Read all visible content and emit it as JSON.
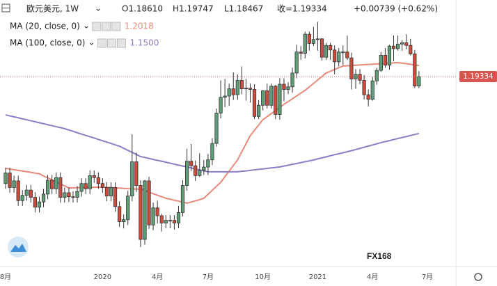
{
  "chart_data": {
    "type": "candlestick",
    "symbol": "欧元美元, 1W",
    "ohlc_text": [
      "O1.18610",
      "H1.19747",
      "L1.18467",
      "收=1.19334",
      "+0.00739 (+0.62%)"
    ],
    "price_label": "1.19334",
    "watermark": "FX168",
    "up_color": "#5f9f78",
    "down_color": "#cf4b3b",
    "price_line_color": "#d9534f",
    "ylim": [
      1.0505,
      1.2515
    ],
    "categories": [
      "8月",
      null,
      null,
      null,
      null,
      null,
      null,
      null,
      null,
      null,
      null,
      null,
      null,
      null,
      null,
      null,
      null,
      null,
      null,
      null,
      null,
      null,
      null,
      "2020",
      null,
      null,
      null,
      null,
      null,
      null,
      null,
      null,
      null,
      null,
      null,
      null,
      "4月",
      null,
      null,
      null,
      null,
      null,
      null,
      null,
      null,
      null,
      null,
      null,
      "7月",
      null,
      null,
      null,
      null,
      null,
      null,
      null,
      null,
      null,
      null,
      null,
      null,
      "10月",
      null,
      null,
      null,
      null,
      null,
      null,
      null,
      null,
      null,
      null,
      null,
      null,
      "2021",
      null,
      null,
      null,
      null,
      null,
      null,
      null,
      null,
      null,
      null,
      null,
      null,
      "4月",
      null,
      null,
      null,
      null,
      null,
      null,
      null,
      null,
      null,
      null,
      null,
      null,
      "7月"
    ],
    "open": [
      1.112,
      1.12,
      1.109,
      1.114,
      1.099,
      1.103,
      1.107,
      1.1015,
      1.094,
      1.098,
      1.104,
      1.1145,
      1.108,
      1.1165,
      1.1015,
      1.105,
      1.102,
      1.1015,
      1.106,
      1.112,
      1.108,
      1.118,
      1.1165,
      1.112,
      1.109,
      1.1025,
      1.109,
      1.0945,
      1.083,
      1.0845,
      1.1025,
      1.1285,
      1.1105,
      1.0695,
      1.114,
      1.0805,
      1.0935,
      1.0875,
      1.082,
      1.084,
      1.084,
      1.082,
      1.09,
      1.1105,
      1.129,
      1.1255,
      1.118,
      1.122,
      1.1245,
      1.13,
      1.1425,
      1.1655,
      1.1775,
      1.1785,
      1.184,
      1.1795,
      1.1905,
      1.184,
      1.1845,
      1.1835,
      1.163,
      1.1715,
      1.1825,
      1.1715,
      1.186,
      1.1645,
      1.1875,
      1.1835,
      1.1855,
      1.196,
      1.212,
      1.211,
      1.2255,
      1.2185,
      1.2215,
      1.222,
      1.208,
      1.217,
      1.2135,
      1.2045,
      1.212,
      1.212,
      1.2075,
      1.1915,
      1.195,
      1.1905,
      1.1795,
      1.176,
      1.19,
      1.198,
      1.2095,
      1.202,
      1.2165,
      1.2145,
      1.218,
      1.219,
      1.217,
      1.2105,
      1.1861,
      null,
      null
    ],
    "high": [
      1.124,
      1.124,
      1.118,
      1.118,
      1.107,
      1.111,
      1.111,
      1.1055,
      1.102,
      1.108,
      1.1185,
      1.1185,
      1.1205,
      1.1205,
      1.109,
      1.109,
      1.106,
      1.11,
      1.116,
      1.116,
      1.122,
      1.122,
      1.1205,
      1.116,
      1.113,
      1.113,
      1.113,
      1.0985,
      1.0885,
      1.1065,
      1.1495,
      1.1355,
      1.1145,
      1.1147,
      1.117,
      1.0975,
      1.099,
      1.089,
      1.088,
      1.088,
      1.088,
      1.095,
      1.1145,
      1.1385,
      1.142,
      1.1295,
      1.135,
      1.13,
      1.1345,
      1.1465,
      1.169,
      1.1905,
      1.1915,
      1.188,
      1.1965,
      1.195,
      1.201,
      1.1915,
      1.188,
      1.1875,
      1.1755,
      1.183,
      1.188,
      1.188,
      1.187,
      1.192,
      1.192,
      1.189,
      1.2,
      1.2175,
      1.2165,
      1.2275,
      1.2275,
      1.231,
      1.2349,
      1.2225,
      1.219,
      1.219,
      1.217,
      1.215,
      1.217,
      1.2245,
      1.2115,
      1.199,
      1.199,
      1.1945,
      1.1835,
      1.193,
      1.2,
      1.212,
      1.215,
      1.2175,
      1.2245,
      1.2245,
      1.221,
      1.2255,
      1.222,
      1.2135,
      1.19747,
      null,
      null
    ],
    "low": [
      1.108,
      1.105,
      1.105,
      1.095,
      1.095,
      1.099,
      1.0975,
      1.09,
      1.09,
      1.094,
      1.1,
      1.104,
      1.104,
      1.0975,
      1.0975,
      1.098,
      1.0975,
      1.0975,
      1.102,
      1.104,
      1.104,
      1.1125,
      1.108,
      1.105,
      1.0985,
      1.0985,
      1.0905,
      1.079,
      1.0778,
      1.0805,
      1.0985,
      1.1055,
      1.0636,
      1.0655,
      1.0775,
      1.0765,
      1.0815,
      1.0755,
      1.078,
      1.078,
      1.077,
      1.078,
      1.087,
      1.1065,
      1.1215,
      1.114,
      1.117,
      1.1185,
      1.1185,
      1.126,
      1.14,
      1.1615,
      1.17,
      1.171,
      1.1755,
      1.1755,
      1.18,
      1.175,
      1.1735,
      1.161,
      1.161,
      1.1675,
      1.169,
      1.169,
      1.161,
      1.1605,
      1.1745,
      1.18,
      1.181,
      1.192,
      1.206,
      1.207,
      1.213,
      1.2165,
      1.213,
      1.2055,
      1.206,
      1.206,
      1.195,
      1.201,
      1.202,
      1.206,
      1.1835,
      1.184,
      1.1875,
      1.176,
      1.1705,
      1.175,
      1.187,
      1.197,
      1.2,
      1.1985,
      1.205,
      1.213,
      1.213,
      1.214,
      1.2095,
      1.1845,
      1.18467,
      null,
      null
    ],
    "close": [
      1.12,
      1.109,
      1.114,
      1.099,
      1.103,
      1.107,
      1.1015,
      1.094,
      1.098,
      1.104,
      1.1145,
      1.108,
      1.1165,
      1.1015,
      1.105,
      1.102,
      1.1015,
      1.106,
      1.112,
      1.108,
      1.118,
      1.1165,
      1.112,
      1.109,
      1.1025,
      1.109,
      1.0945,
      1.083,
      1.0845,
      1.1025,
      1.1285,
      1.1105,
      1.0695,
      1.114,
      1.0805,
      1.0935,
      1.0875,
      1.082,
      1.084,
      1.084,
      1.082,
      1.09,
      1.1105,
      1.129,
      1.1255,
      1.118,
      1.122,
      1.1245,
      1.13,
      1.1425,
      1.1655,
      1.1775,
      1.1785,
      1.184,
      1.1795,
      1.1905,
      1.184,
      1.1845,
      1.1835,
      1.163,
      1.1715,
      1.1825,
      1.1715,
      1.186,
      1.1645,
      1.1875,
      1.1835,
      1.1855,
      1.196,
      1.212,
      1.211,
      1.2255,
      1.2185,
      1.2215,
      1.222,
      1.208,
      1.217,
      1.2135,
      1.2045,
      1.212,
      1.212,
      1.2075,
      1.1915,
      1.195,
      1.1905,
      1.1795,
      1.176,
      1.19,
      1.198,
      1.2095,
      1.202,
      1.2165,
      1.2145,
      1.218,
      1.219,
      1.217,
      1.2105,
      1.1861,
      1.19334,
      null,
      null
    ],
    "indicators": [
      {
        "name": "MA (20, close, 0)",
        "color": "#e8897a",
        "value_label": "1.2018",
        "values": [
          1.1235,
          1.123,
          1.1225,
          1.122,
          1.1215,
          1.121,
          1.1205,
          1.1199,
          1.1194,
          1.1178,
          1.1163,
          1.1148,
          1.1133,
          1.1117,
          1.1102,
          1.1087,
          1.1087,
          1.1088,
          1.1089,
          1.109,
          1.1091,
          1.1092,
          1.1093,
          1.1092,
          1.1091,
          1.1089,
          1.1087,
          1.1085,
          1.1083,
          1.1081,
          1.1079,
          1.1078,
          1.1077,
          1.1066,
          1.1054,
          1.1043,
          1.1031,
          1.102,
          1.1008,
          1.1001,
          1.0993,
          1.0986,
          1.0978,
          1.0971,
          1.0979,
          1.0988,
          1.0997,
          1.1008,
          1.1038,
          1.1068,
          1.1099,
          1.1129,
          1.1172,
          1.1214,
          1.1257,
          1.1299,
          1.1361,
          1.1422,
          1.1484,
          1.1524,
          1.1565,
          1.1605,
          1.1628,
          1.1652,
          1.1675,
          1.1699,
          1.1722,
          1.1743,
          1.1764,
          1.1786,
          1.1807,
          1.1828,
          1.1854,
          1.1881,
          1.1907,
          1.1934,
          1.196,
          1.1973,
          1.1987,
          1.2,
          1.2013,
          1.2015,
          1.2017,
          1.2019,
          1.2021,
          1.2023,
          1.2025,
          1.2027,
          1.2029,
          1.2031,
          1.2033,
          1.2035,
          1.2037,
          1.2039,
          1.2035,
          1.2031,
          1.2026,
          1.2022,
          1.2018,
          null,
          null
        ]
      },
      {
        "name": "MA (100, close, 0)",
        "color": "#8f7bc6",
        "value_label": "1.1500",
        "values": [
          1.1642,
          1.1634,
          1.1627,
          1.162,
          1.1612,
          1.1605,
          1.1597,
          1.159,
          1.1582,
          1.1575,
          1.1567,
          1.156,
          1.1552,
          1.1545,
          1.1537,
          1.1527,
          1.1517,
          1.1506,
          1.1496,
          1.1486,
          1.1476,
          1.1466,
          1.1455,
          1.1445,
          1.1435,
          1.1425,
          1.1414,
          1.1404,
          1.1388,
          1.1372,
          1.1357,
          1.1341,
          1.1325,
          1.1318,
          1.1311,
          1.1303,
          1.1296,
          1.1289,
          1.1282,
          1.1275,
          1.1267,
          1.126,
          1.1253,
          1.1246,
          1.1239,
          1.1231,
          1.1224,
          1.1216,
          1.1209,
          1.1209,
          1.1209,
          1.1209,
          1.1209,
          1.1209,
          1.1209,
          1.1209,
          1.1213,
          1.1216,
          1.122,
          1.1224,
          1.1228,
          1.1231,
          1.1235,
          1.1239,
          1.1242,
          1.1246,
          1.1253,
          1.1259,
          1.1266,
          1.1272,
          1.1279,
          1.1286,
          1.1292,
          1.1299,
          1.1307,
          1.1315,
          1.1323,
          1.1331,
          1.1339,
          1.1346,
          1.1354,
          1.1362,
          1.137,
          1.1378,
          1.1387,
          1.1396,
          1.1405,
          1.1413,
          1.1422,
          1.1431,
          1.1439,
          1.1446,
          1.1454,
          1.1462,
          1.147,
          1.1477,
          1.1485,
          1.1493,
          1.15,
          null,
          null
        ]
      }
    ]
  }
}
